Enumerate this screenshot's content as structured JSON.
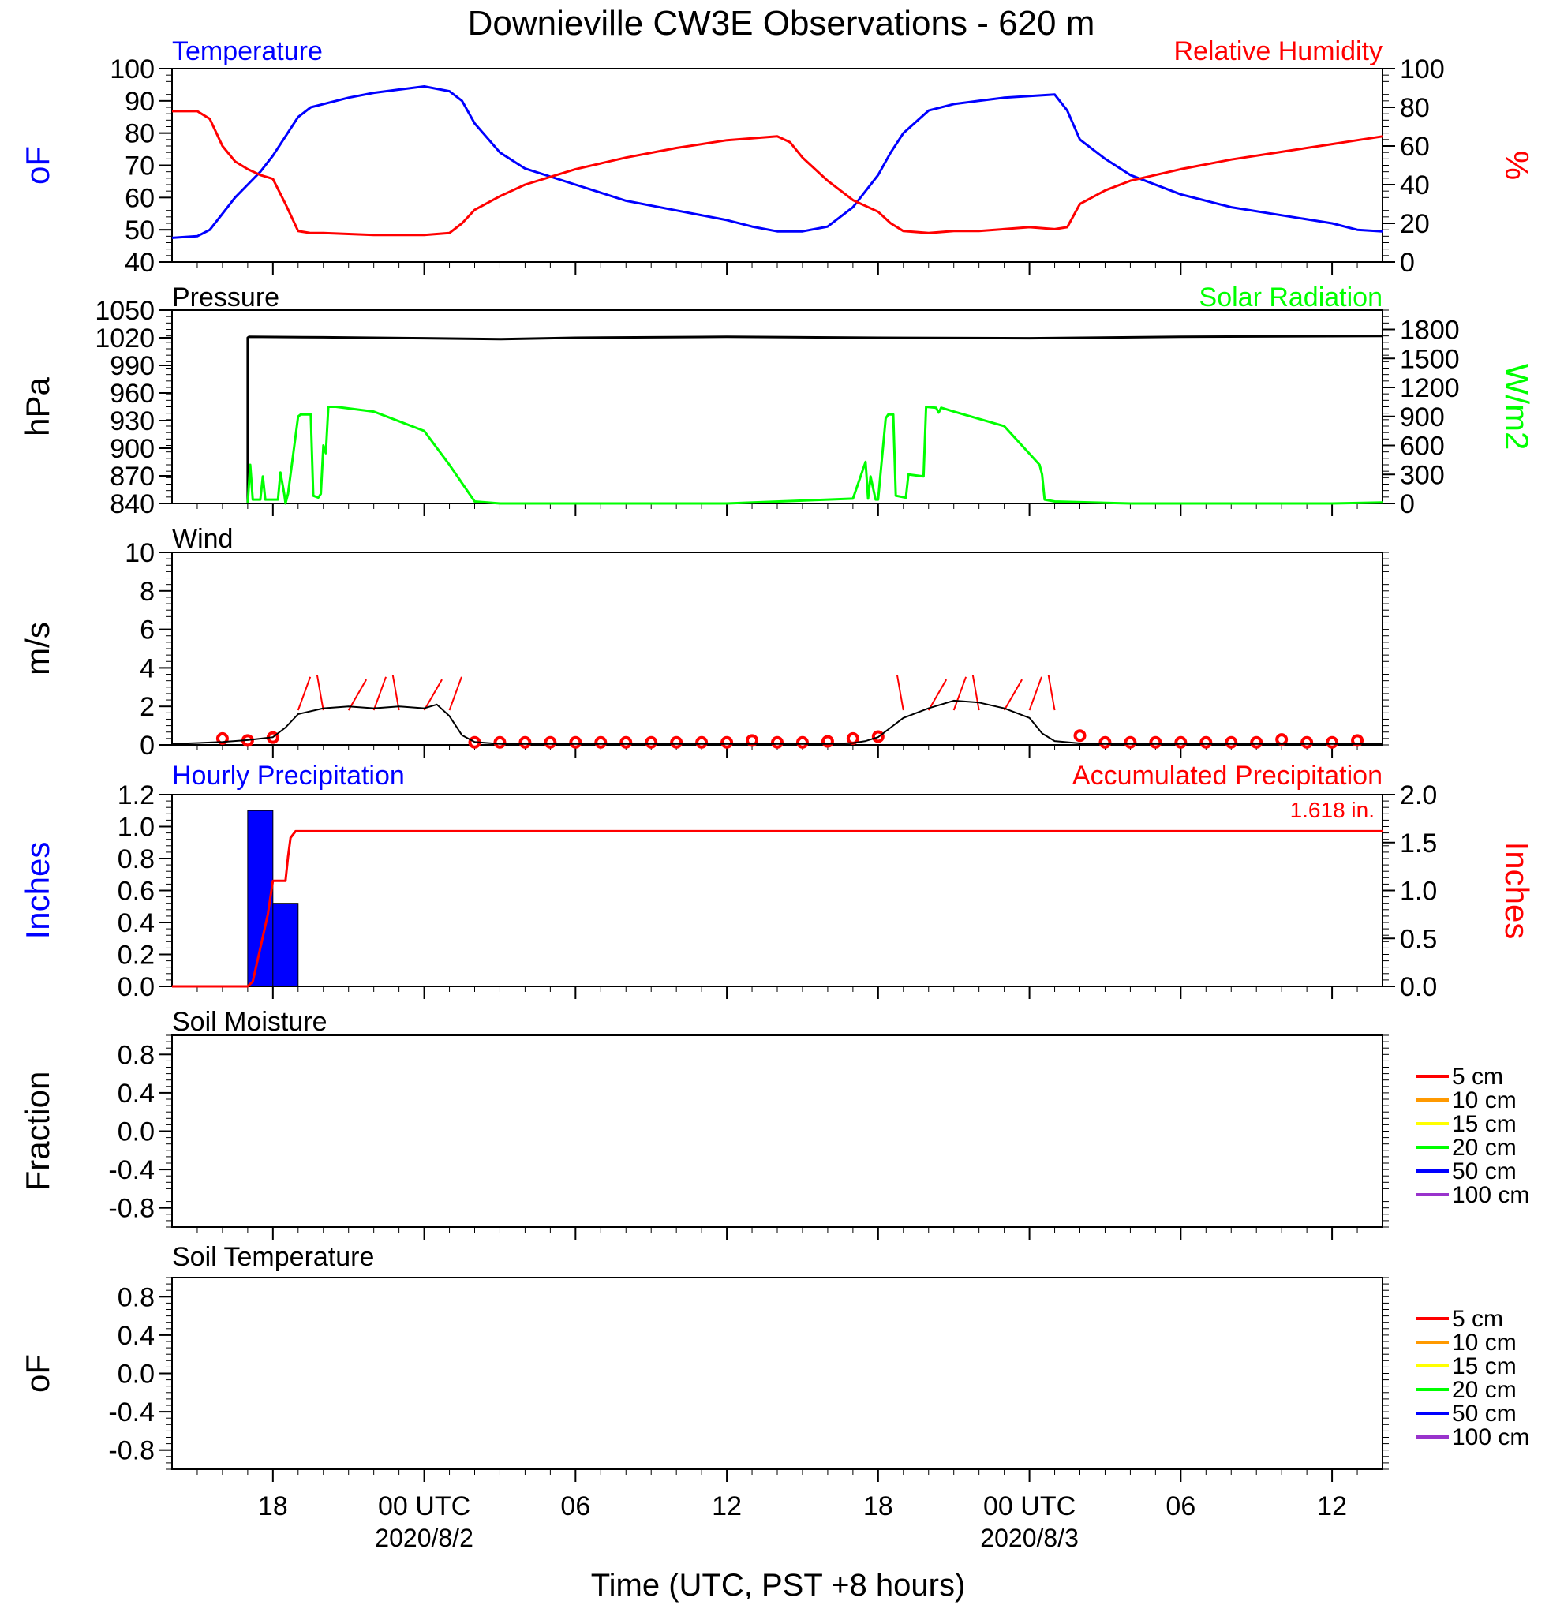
{
  "title": "Downieville CW3E Observations - 620 m",
  "x_axis": {
    "label": "Time (UTC, PST +8 hours)",
    "tick_hours": [
      18,
      24,
      30,
      36,
      42,
      48,
      54,
      60
    ],
    "tick_labels": [
      "18",
      "00 UTC",
      "06",
      "12",
      "18",
      "00 UTC",
      "06",
      "12"
    ],
    "date_labels": [
      {
        "hour": 24,
        "text": "2020/8/2"
      },
      {
        "hour": 48,
        "text": "2020/8/3"
      }
    ],
    "range_hours": [
      14,
      62
    ],
    "range_note": "hours since 2020-08-01 00 UTC"
  },
  "chart_data": [
    {
      "id": "temp_rh",
      "type": "line",
      "left_title": "Temperature",
      "right_title": "Relative Humidity",
      "left_ylabel": "oF",
      "right_ylabel": "%",
      "left_ylim": [
        40,
        100
      ],
      "left_ticks": [
        "100",
        "90",
        "80",
        "70",
        "60",
        "50",
        "40"
      ],
      "right_ylim": [
        0,
        100
      ],
      "right_ticks": [
        "100",
        "80",
        "60",
        "40",
        "20",
        "0"
      ],
      "series": [
        {
          "name": "Temperature",
          "axis": "left",
          "color": "#0000ff",
          "x": [
            14,
            15,
            15.5,
            16,
            16.5,
            17,
            17.5,
            18,
            18.5,
            19,
            19.5,
            20,
            21,
            22,
            23,
            24,
            25,
            25.5,
            26,
            27,
            28,
            30,
            32,
            34,
            36,
            37,
            38,
            39,
            40,
            41,
            42,
            42.5,
            43,
            44,
            45,
            46,
            47,
            48,
            49,
            49.5,
            50,
            51,
            52,
            54,
            56,
            58,
            60,
            61,
            62
          ],
          "y": [
            47.5,
            48,
            50,
            55,
            60,
            64,
            68,
            73,
            79,
            85,
            88,
            89,
            91,
            92.5,
            93.5,
            94.5,
            93,
            90,
            83,
            74,
            69,
            64,
            59,
            56,
            53,
            51,
            49.5,
            49.5,
            51,
            57,
            67,
            74,
            80,
            87,
            89,
            90,
            91,
            91.5,
            92,
            87,
            78,
            72,
            67,
            61,
            57,
            54.5,
            52,
            50,
            49.5
          ]
        },
        {
          "name": "Relative Humidity",
          "axis": "right",
          "color": "#ff0000",
          "x": [
            14,
            15,
            15.5,
            16,
            16.5,
            17,
            17.5,
            18,
            18.5,
            19,
            19.5,
            20,
            22,
            24,
            25,
            25.5,
            26,
            27,
            28,
            30,
            32,
            34,
            36,
            37,
            38,
            38.5,
            39,
            40,
            41,
            42,
            42.5,
            43,
            44,
            45,
            46,
            48,
            49,
            49.5,
            50,
            51,
            52,
            54,
            56,
            58,
            60,
            61,
            62
          ],
          "y": [
            78,
            78,
            74,
            60,
            52,
            48,
            45,
            43,
            30,
            16,
            15,
            15,
            14,
            14,
            15,
            20,
            27,
            34,
            40,
            48,
            54,
            59,
            63,
            64,
            65,
            62,
            54,
            42,
            32,
            26,
            20,
            16,
            15,
            16,
            16,
            18,
            17,
            18,
            30,
            37,
            42,
            48,
            53,
            57,
            61,
            63,
            65
          ]
        }
      ]
    },
    {
      "id": "pressure_solar",
      "type": "line",
      "left_title": "Pressure",
      "right_title": "Solar Radiation",
      "left_ylabel": "hPa",
      "right_ylabel": "W/m2",
      "left_ylim": [
        840,
        1050
      ],
      "left_ticks": [
        "1050",
        "1020",
        "990",
        "960",
        "930",
        "900",
        "870",
        "840"
      ],
      "right_ylim": [
        0,
        2000
      ],
      "right_ticks": [
        "1800",
        "1500",
        "1200",
        "900",
        "600",
        "300",
        "0"
      ],
      "series": [
        {
          "name": "Pressure",
          "axis": "left",
          "color": "#000000",
          "x": [
            17,
            17,
            17.05,
            20,
            24,
            27,
            30,
            36,
            42,
            48,
            54,
            62
          ],
          "y": [
            840,
            1020,
            1021,
            1020.5,
            1019.5,
            1018.5,
            1020,
            1021,
            1020,
            1019.5,
            1021,
            1022
          ]
        },
        {
          "name": "Solar Radiation",
          "axis": "right",
          "color": "#00ff00",
          "x": [
            17,
            17.1,
            17.2,
            17.5,
            17.6,
            17.7,
            17.8,
            18,
            18.2,
            18.3,
            18.45,
            18.5,
            18.6,
            19,
            19.1,
            19.5,
            19.6,
            19.8,
            19.9,
            20,
            20.1,
            20.2,
            20.5,
            22,
            24,
            25,
            26,
            26.3,
            27,
            30,
            36,
            40,
            41,
            41.5,
            41.6,
            41.7,
            41.9,
            42,
            42.3,
            42.4,
            42.6,
            42.7,
            43.1,
            43.2,
            43.8,
            43.9,
            44.3,
            44.4,
            44.5,
            45,
            47,
            48.4,
            48.5,
            48.6,
            49,
            52,
            56,
            60,
            62
          ],
          "y": [
            0,
            400,
            40,
            40,
            280,
            40,
            40,
            40,
            40,
            320,
            100,
            0,
            100,
            900,
            920,
            920,
            80,
            60,
            100,
            600,
            520,
            1000,
            1000,
            950,
            750,
            400,
            20,
            15,
            0,
            0,
            0,
            40,
            50,
            430,
            50,
            280,
            40,
            40,
            880,
            920,
            920,
            80,
            60,
            300,
            280,
            1000,
            990,
            940,
            990,
            950,
            800,
            400,
            300,
            40,
            20,
            0,
            0,
            0,
            10
          ]
        }
      ]
    },
    {
      "id": "wind",
      "type": "line",
      "left_title": "Wind",
      "left_ylabel": "m/s",
      "left_ylim": [
        0,
        10
      ],
      "left_ticks": [
        "10",
        "8",
        "6",
        "4",
        "2",
        "0"
      ],
      "series": [
        {
          "name": "Wind speed",
          "axis": "left",
          "color": "#000000",
          "x": [
            14,
            16,
            17,
            18,
            18.5,
            19,
            20,
            21,
            22,
            23,
            24,
            24.5,
            25,
            25.5,
            26,
            27,
            30,
            34,
            38,
            40,
            41,
            41.5,
            42,
            42.5,
            43,
            44,
            45,
            46,
            47,
            48,
            48.5,
            49,
            50,
            51,
            54,
            58,
            62
          ],
          "y": [
            0.05,
            0.15,
            0.25,
            0.4,
            0.9,
            1.6,
            1.9,
            2.0,
            1.9,
            2.0,
            1.9,
            2.1,
            1.5,
            0.5,
            0.15,
            0.05,
            0.05,
            0.05,
            0.05,
            0.05,
            0.1,
            0.2,
            0.4,
            0.9,
            1.4,
            1.9,
            2.3,
            2.2,
            1.9,
            1.4,
            0.6,
            0.2,
            0.08,
            0.05,
            0.05,
            0.05,
            0.05
          ]
        }
      ],
      "hourly_markers_hours": [
        16,
        17,
        18,
        26,
        27,
        28,
        29,
        30,
        31,
        32,
        33,
        34,
        35,
        36,
        37,
        38,
        39,
        40,
        41,
        42,
        50,
        51,
        52,
        53,
        54,
        55,
        56,
        57,
        58,
        59,
        60,
        61
      ],
      "hourly_markers_speed": [
        0.25,
        0.15,
        0.3,
        0.05,
        0.05,
        0.05,
        0.05,
        0.05,
        0.05,
        0.05,
        0.05,
        0.05,
        0.05,
        0.05,
        0.15,
        0.05,
        0.05,
        0.1,
        0.25,
        0.35,
        0.4,
        0.05,
        0.05,
        0.05,
        0.05,
        0.05,
        0.05,
        0.05,
        0.2,
        0.05,
        0.05,
        0.15
      ]
    },
    {
      "id": "precip",
      "type": "bar",
      "left_title": "Hourly Precipitation",
      "right_title": "Accumulated Precipitation",
      "left_ylabel": "Inches",
      "right_ylabel": "Inches",
      "left_ylim": [
        0,
        1.2
      ],
      "left_ticks": [
        "1.2",
        "1.0",
        "0.8",
        "0.6",
        "0.4",
        "0.2",
        "0.0"
      ],
      "right_ylim": [
        0,
        2.0
      ],
      "right_ticks": [
        "2.0",
        "1.5",
        "1.0",
        "0.5",
        "0.0"
      ],
      "accum_label": "1.618 in.",
      "hourly_bars": [
        {
          "start_hour": 17,
          "end_hour": 18,
          "value": 1.1
        },
        {
          "start_hour": 18,
          "end_hour": 19,
          "value": 0.52
        }
      ],
      "series": [
        {
          "name": "Accumulated Precipitation",
          "axis": "right",
          "color": "#ff0000",
          "x": [
            14,
            17,
            17.2,
            17.5,
            17.8,
            18,
            18.2,
            18.4,
            18.5,
            18.6,
            18.7,
            18.9,
            62
          ],
          "y": [
            0,
            0,
            0.05,
            0.4,
            0.75,
            1.1,
            1.1,
            1.1,
            1.1,
            1.35,
            1.55,
            1.618,
            1.618
          ]
        }
      ]
    },
    {
      "id": "soil_moisture",
      "type": "line",
      "left_title": "Soil Moisture",
      "left_ylabel": "Fraction",
      "left_ylim": [
        -1,
        1
      ],
      "left_ticks": [
        "0.8",
        "0.4",
        "0.0",
        "-0.4",
        "-0.8"
      ],
      "left_tick_values": [
        0.8,
        0.4,
        0.0,
        -0.4,
        -0.8
      ],
      "legend_placement": "right",
      "legend": [
        {
          "name": "5 cm",
          "color": "#ff0000"
        },
        {
          "name": "10 cm",
          "color": "#ff9900"
        },
        {
          "name": "15 cm",
          "color": "#ffff00"
        },
        {
          "name": "20 cm",
          "color": "#00ff00"
        },
        {
          "name": "50 cm",
          "color": "#0000ff"
        },
        {
          "name": "100 cm",
          "color": "#9933cc"
        }
      ],
      "series": []
    },
    {
      "id": "soil_temp",
      "type": "line",
      "left_title": "Soil Temperature",
      "left_ylabel": "oF",
      "left_ylim": [
        -1,
        1
      ],
      "left_ticks": [
        "0.8",
        "0.4",
        "0.0",
        "-0.4",
        "-0.8"
      ],
      "left_tick_values": [
        0.8,
        0.4,
        0.0,
        -0.4,
        -0.8
      ],
      "legend_placement": "right",
      "legend": [
        {
          "name": "5 cm",
          "color": "#ff0000"
        },
        {
          "name": "10 cm",
          "color": "#ff9900"
        },
        {
          "name": "15 cm",
          "color": "#ffff00"
        },
        {
          "name": "20 cm",
          "color": "#00ff00"
        },
        {
          "name": "50 cm",
          "color": "#0000ff"
        },
        {
          "name": "100 cm",
          "color": "#9933cc"
        }
      ],
      "series": []
    }
  ],
  "colors": {
    "temperature": "#0000ff",
    "humidity": "#ff0000",
    "pressure": "#000000",
    "solar": "#00ff00",
    "precip": "#0000ff",
    "accum": "#ff0000",
    "wind_marker": "#ff0000",
    "wind_barb": "#ff0000"
  }
}
